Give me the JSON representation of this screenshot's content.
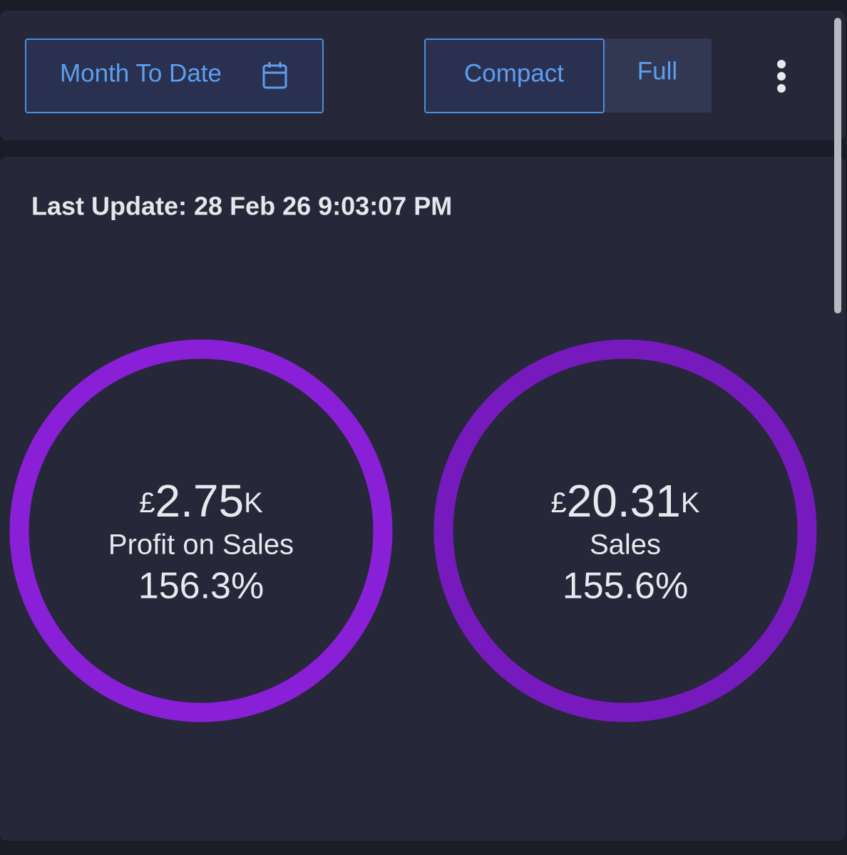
{
  "toolbar": {
    "date_range": "Month To Date",
    "view_toggle": [
      "Compact",
      "Full"
    ]
  },
  "last_update": "Last Update: 28 Feb 26 9:03:07 PM",
  "metrics": [
    {
      "currency": "£",
      "value": "2.75",
      "unit": "K",
      "label": "Profit on Sales",
      "percent": "156.3%"
    },
    {
      "currency": "£",
      "value": "20.31",
      "unit": "K",
      "label": "Sales",
      "percent": "155.6%"
    }
  ]
}
